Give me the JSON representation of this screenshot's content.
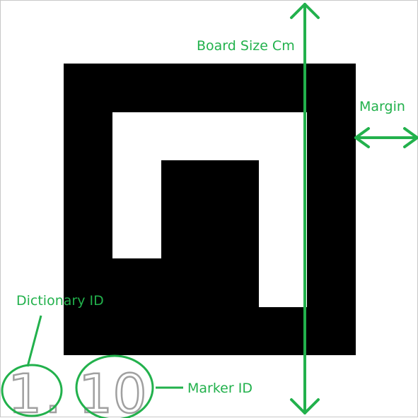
{
  "annotations": {
    "board_size": "Board Size Cm",
    "margin": "Margin",
    "dictionary_id": "Dictionary ID",
    "marker_id": "Marker ID"
  },
  "marker_caption": {
    "dictionary_value": "1",
    "separator": ".",
    "marker_value": "10"
  },
  "colors": {
    "annotation": "#22b14c",
    "marker": "#000000",
    "background": "#ffffff",
    "caption_text": "#a0a0a0",
    "frame": "#c8c8c8"
  }
}
